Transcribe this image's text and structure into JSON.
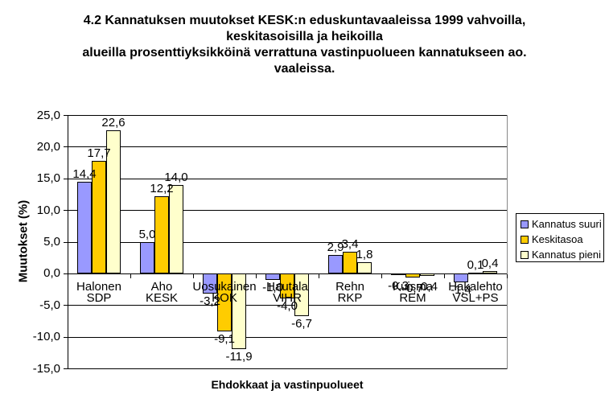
{
  "chart_data": {
    "type": "bar",
    "title_lines": [
      "4.2 Kannatuksen muutokset KESK:n eduskuntavaaleissa 1999 vahvoilla,",
      "keskitasoisilla ja heikoilla",
      "alueilla prosenttiyksikköinä verrattuna vastinpuolueen kannatukseen ao.",
      "vaaleissa."
    ],
    "xlabel": "Ehdokkaat ja vastinpuolueet",
    "ylabel": "Muutokset (%)",
    "ylim": [
      -15,
      25
    ],
    "ytick_step": 5,
    "ytick_labels": [
      "25,0",
      "20,0",
      "15,0",
      "10,0",
      "5,0",
      "0,0",
      "-5,0",
      "-10,0",
      "-15,0"
    ],
    "grid": true,
    "legend_position": "right",
    "decimal_separator": ",",
    "categories": [
      [
        "Halonen",
        "SDP"
      ],
      [
        "Aho",
        "KESK"
      ],
      [
        "Uosukainen",
        "KOK"
      ],
      [
        "Hautala",
        "VIHR"
      ],
      [
        "Rehn",
        "RKP"
      ],
      [
        "Kuisma",
        "REM"
      ],
      [
        "Hakalehto",
        "VSL+PS"
      ]
    ],
    "series": [
      {
        "name": "Kannatus suuri",
        "color": "#9999FF",
        "values": [
          14.4,
          5.0,
          -3.2,
          -1.0,
          2.9,
          -0.3,
          -1.4
        ]
      },
      {
        "name": "Keskitasoa",
        "color": "#FFCC00",
        "values": [
          17.7,
          12.2,
          -9.1,
          -4.0,
          3.4,
          -0.7,
          0.1
        ]
      },
      {
        "name": "Kannatus pieni",
        "color": "#FFFFCC",
        "values": [
          22.6,
          14.0,
          -11.9,
          -6.7,
          1.8,
          -0.4,
          0.4
        ]
      }
    ]
  }
}
